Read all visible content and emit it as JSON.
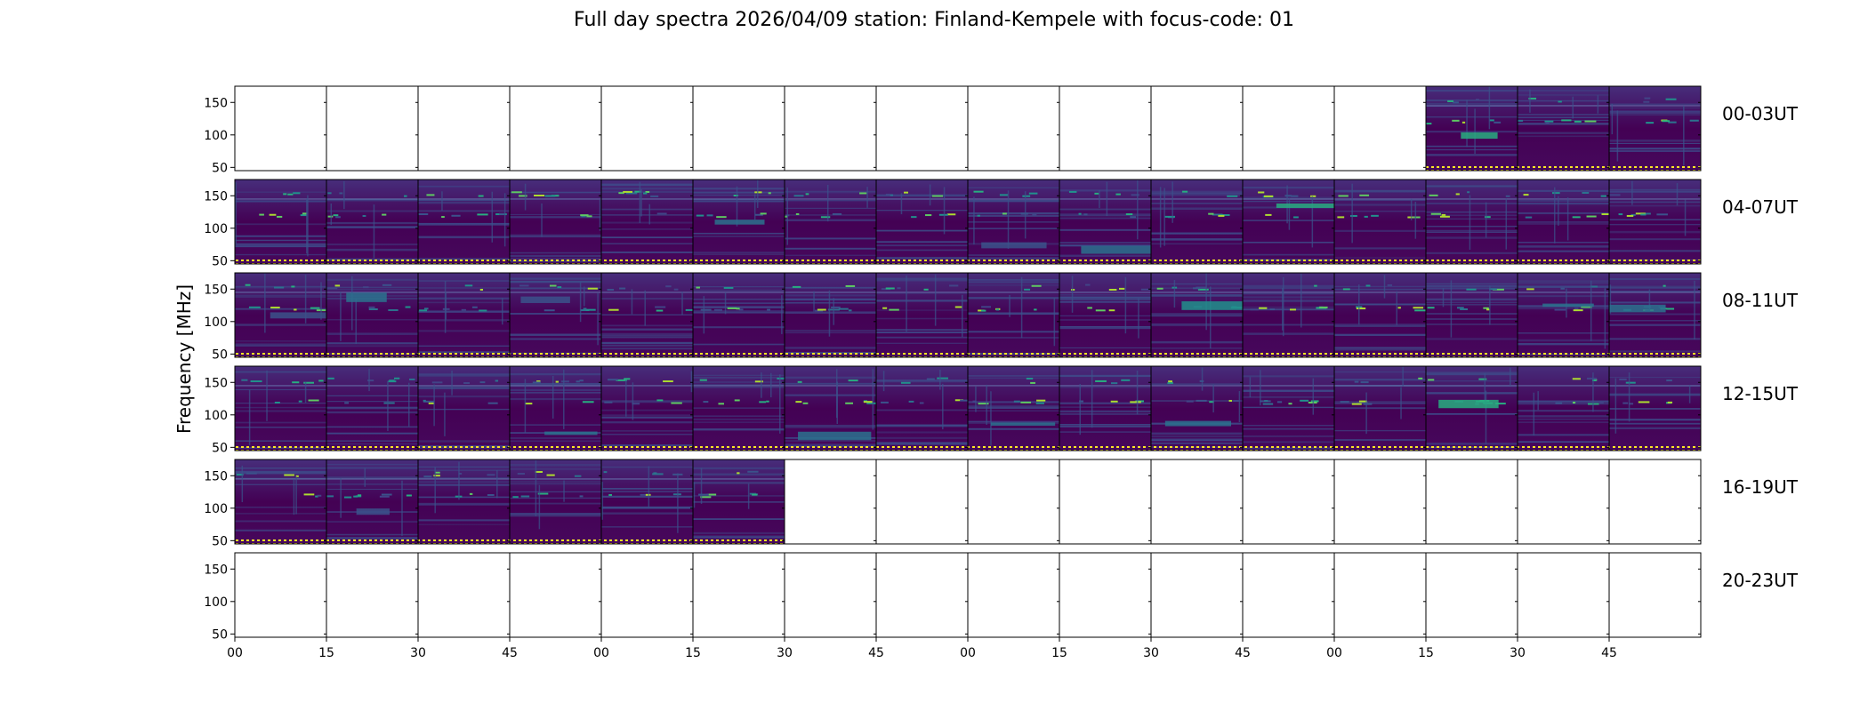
{
  "chart_data": {
    "type": "heatmap",
    "title": "Full day spectra 2026/04/09 station: Finland-Kempele with focus-code: 01",
    "ylabel": "Frequency [MHz]",
    "xlabel": "",
    "ylim": [
      45,
      175
    ],
    "yticks": [
      50,
      100,
      150
    ],
    "xticks": [
      "00",
      "15",
      "30",
      "45",
      "00",
      "15",
      "30",
      "45",
      "00",
      "15",
      "30",
      "45",
      "00",
      "15",
      "30",
      "45"
    ],
    "colormap": "viridis",
    "colors": {
      "background": "#440154",
      "frame": "#000000",
      "marker": "#fde725"
    },
    "columns_per_row": 16,
    "rows": [
      {
        "label": "00-03UT",
        "panels_with_data": [
          13,
          14,
          15
        ]
      },
      {
        "label": "04-07UT",
        "panels_with_data": [
          0,
          1,
          2,
          3,
          4,
          5,
          6,
          7,
          8,
          9,
          10,
          11,
          12,
          13,
          14,
          15
        ]
      },
      {
        "label": "08-11UT",
        "panels_with_data": [
          0,
          1,
          2,
          3,
          4,
          5,
          6,
          7,
          8,
          9,
          10,
          11,
          12,
          13,
          14,
          15
        ]
      },
      {
        "label": "12-15UT",
        "panels_with_data": [
          0,
          1,
          2,
          3,
          4,
          5,
          6,
          7,
          8,
          9,
          10,
          11,
          12,
          13,
          14,
          15
        ]
      },
      {
        "label": "16-19UT",
        "panels_with_data": [
          0,
          1,
          2,
          3,
          4,
          5
        ]
      },
      {
        "label": "20-23UT",
        "panels_with_data": []
      }
    ]
  }
}
